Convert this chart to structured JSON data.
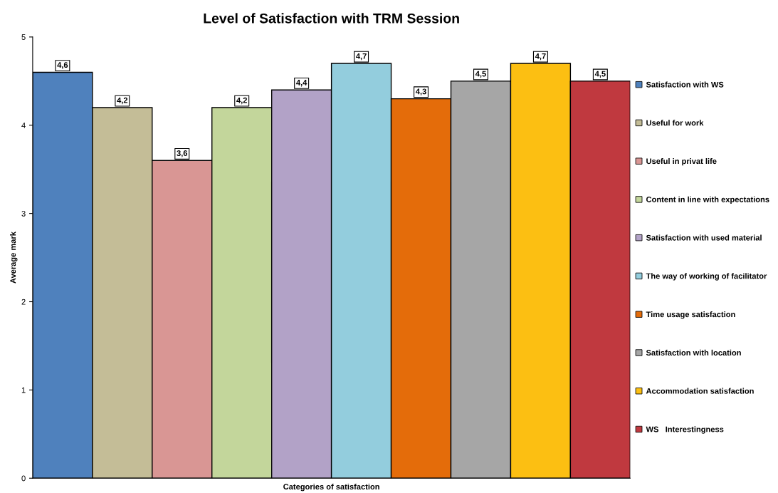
{
  "chart_data": {
    "type": "bar",
    "title": "Level of Satisfaction with TRM Session",
    "xlabel": "Categories of satisfaction",
    "ylabel": "Average mark",
    "categories": [
      null
    ],
    "series": [
      {
        "name": "Satisfaction with WS",
        "color": "#4f81bd",
        "values": [
          4.6
        ],
        "value_labels": [
          "4,6"
        ]
      },
      {
        "name": "Useful for work",
        "color": "#c4bd97",
        "values": [
          4.2
        ],
        "value_labels": [
          "4,2"
        ]
      },
      {
        "name": "Useful in privat life",
        "color": "#d99694",
        "values": [
          3.6
        ],
        "value_labels": [
          "3,6"
        ]
      },
      {
        "name": "Content in line with expectations",
        "color": "#c3d69b",
        "values": [
          4.2
        ],
        "value_labels": [
          "4,2"
        ]
      },
      {
        "name": "Satisfaction with used material",
        "color": "#b2a2c7",
        "values": [
          4.4
        ],
        "value_labels": [
          "4,4"
        ]
      },
      {
        "name": "The way of working of facilitator",
        "color": "#93cddd",
        "values": [
          4.7
        ],
        "value_labels": [
          "4,7"
        ]
      },
      {
        "name": "Time usage satisfaction",
        "color": "#e46c0a",
        "values": [
          4.3
        ],
        "value_labels": [
          "4,3"
        ]
      },
      {
        "name": "Satisfaction with location",
        "color": "#a6a6a6",
        "values": [
          4.5
        ],
        "value_labels": [
          "4,5"
        ]
      },
      {
        "name": "Accommodation satisfaction",
        "color": "#fcbf12",
        "values": [
          4.7
        ],
        "value_labels": [
          "4,7"
        ]
      },
      {
        "name": "WS   Interestingness",
        "color": "#c0393f",
        "values": [
          4.5
        ],
        "value_labels": [
          "4,5"
        ]
      }
    ],
    "ylim": [
      0,
      5
    ],
    "yticks": [
      0,
      1,
      2,
      3,
      4,
      5
    ],
    "grid": false,
    "legend": "right"
  }
}
